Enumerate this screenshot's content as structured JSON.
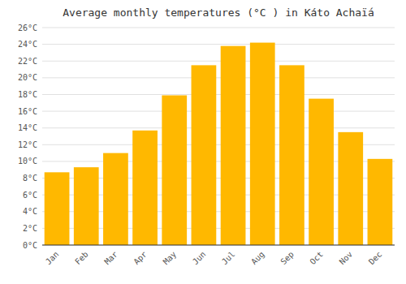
{
  "chart_data": {
    "type": "bar",
    "title": "Average monthly temperatures (°C ) in Káto Achaḯa",
    "categories": [
      "Jan",
      "Feb",
      "Mar",
      "Apr",
      "May",
      "Jun",
      "Jul",
      "Aug",
      "Sep",
      "Oct",
      "Nov",
      "Dec"
    ],
    "values": [
      8.7,
      9.3,
      11.0,
      13.7,
      17.9,
      21.5,
      23.8,
      24.2,
      21.5,
      17.5,
      13.5,
      10.3
    ],
    "color": "#FFB800",
    "ylim": [
      0,
      26
    ],
    "yticks": [
      {
        "value": 0,
        "label": "0°C"
      },
      {
        "value": 2,
        "label": "2°C"
      },
      {
        "value": 4,
        "label": "4°C"
      },
      {
        "value": 6,
        "label": "6°C"
      },
      {
        "value": 8,
        "label": "8°C"
      },
      {
        "value": 10,
        "label": "10°C"
      },
      {
        "value": 12,
        "label": "12°C"
      },
      {
        "value": 14,
        "label": "14°C"
      },
      {
        "value": 16,
        "label": "16°C"
      },
      {
        "value": 18,
        "label": "18°C"
      },
      {
        "value": 20,
        "label": "20°C"
      },
      {
        "value": 22,
        "label": "22°C"
      },
      {
        "value": 24,
        "label": "24°C"
      },
      {
        "value": 26,
        "label": "26°C"
      }
    ],
    "grid": true
  }
}
